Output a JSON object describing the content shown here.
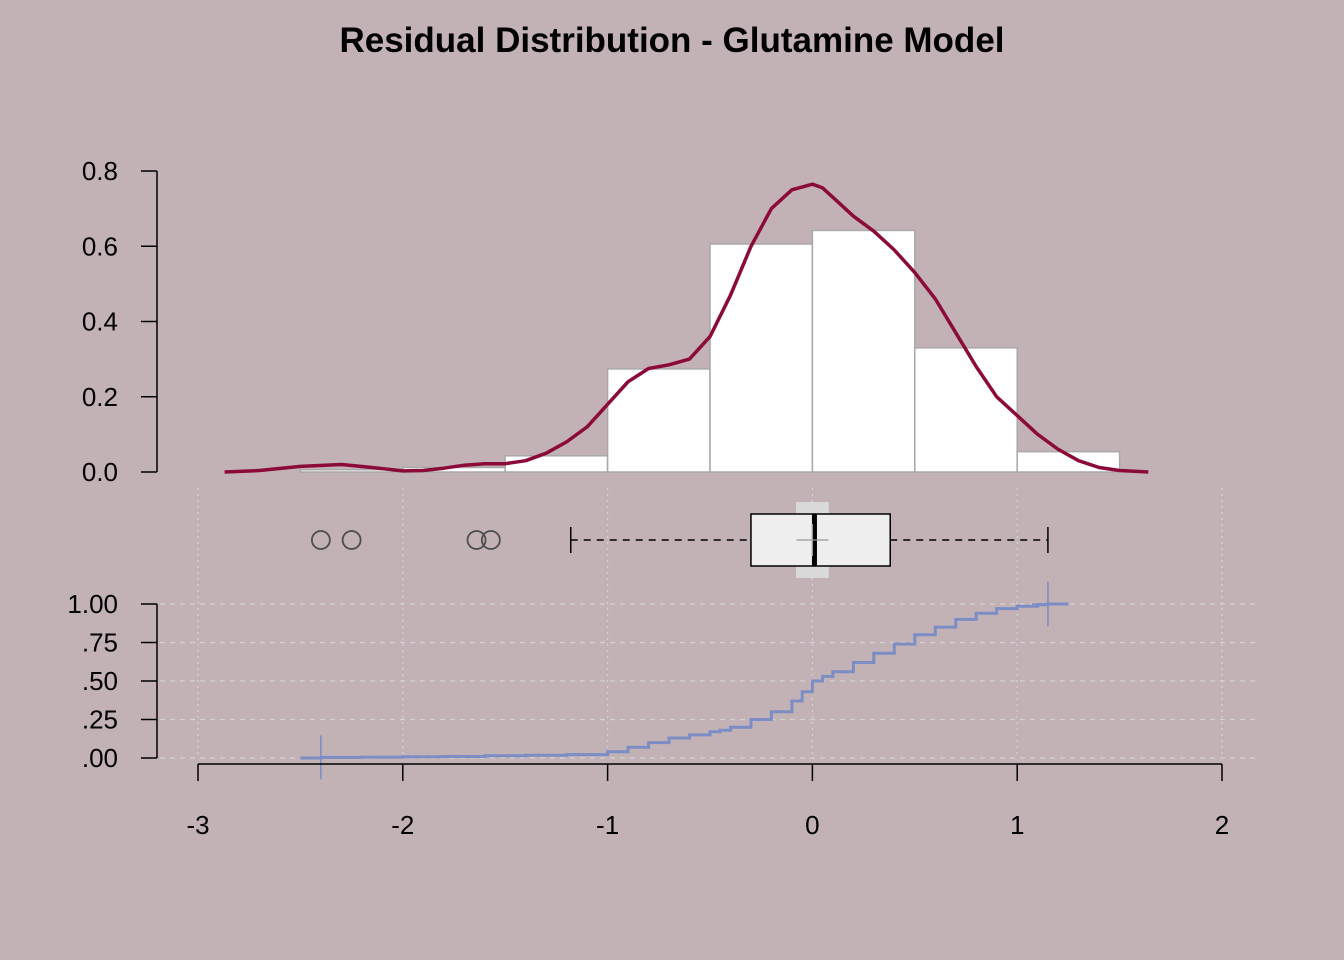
{
  "title": "Residual Distribution - Glutamine Model",
  "colors": {
    "background": "#C2B2B6",
    "hist_fill": "#FFFFFF",
    "hist_border": "#A8A8A8",
    "density": "#8B0A3A",
    "box_fill": "#EEEEEE",
    "mean_band": "#D9D9D9",
    "ecdf": "#7B8DC4",
    "outlier": "#4D4D4D",
    "grid": "#D3D3D3"
  },
  "chart_data": [
    {
      "type": "bar",
      "subtype": "histogram",
      "bins": [
        {
          "x0": -2.5,
          "x1": -2.0,
          "density": 0.006
        },
        {
          "x0": -2.0,
          "x1": -1.5,
          "density": 0.012
        },
        {
          "x0": -1.5,
          "x1": -1.0,
          "density": 0.043
        },
        {
          "x0": -1.0,
          "x1": -0.5,
          "density": 0.274
        },
        {
          "x0": -0.5,
          "x1": 0.0,
          "density": 0.606
        },
        {
          "x0": 0.0,
          "x1": 0.5,
          "density": 0.642
        },
        {
          "x0": 0.5,
          "x1": 1.0,
          "density": 0.33
        },
        {
          "x0": 1.0,
          "x1": 1.5,
          "density": 0.054
        }
      ],
      "density_curve": {
        "x": [
          -2.87,
          -2.7,
          -2.5,
          -2.3,
          -2.15,
          -2.0,
          -1.9,
          -1.8,
          -1.7,
          -1.6,
          -1.5,
          -1.4,
          -1.3,
          -1.2,
          -1.1,
          -1.0,
          -0.9,
          -0.8,
          -0.7,
          -0.6,
          -0.5,
          -0.4,
          -0.3,
          -0.2,
          -0.1,
          0.0,
          0.05,
          0.1,
          0.2,
          0.3,
          0.4,
          0.5,
          0.6,
          0.7,
          0.8,
          0.9,
          1.0,
          1.1,
          1.2,
          1.3,
          1.4,
          1.5,
          1.64
        ],
        "y": [
          0.0,
          0.004,
          0.015,
          0.02,
          0.012,
          0.003,
          0.004,
          0.01,
          0.018,
          0.022,
          0.022,
          0.03,
          0.05,
          0.08,
          0.12,
          0.18,
          0.24,
          0.275,
          0.285,
          0.3,
          0.36,
          0.47,
          0.6,
          0.7,
          0.75,
          0.765,
          0.755,
          0.73,
          0.68,
          0.64,
          0.59,
          0.53,
          0.46,
          0.37,
          0.28,
          0.2,
          0.15,
          0.1,
          0.06,
          0.03,
          0.012,
          0.004,
          0.0
        ]
      },
      "ylim": [
        0,
        0.8
      ],
      "yticks": [
        "0.0",
        "0.2",
        "0.4",
        "0.6",
        "0.8"
      ]
    },
    {
      "type": "boxplot",
      "whisker_low": -1.18,
      "q1": -0.3,
      "median": 0.01,
      "q3": 0.38,
      "whisker_high": 1.15,
      "mean": 0.0,
      "mean_ci": [
        -0.08,
        0.08
      ],
      "outliers": [
        -2.4,
        -2.25,
        -1.64,
        -1.57
      ]
    },
    {
      "type": "line",
      "subtype": "ecdf",
      "x": [
        -2.5,
        -2.4,
        -2.2,
        -2.0,
        -1.8,
        -1.6,
        -1.4,
        -1.2,
        -1.0,
        -0.9,
        -0.8,
        -0.7,
        -0.6,
        -0.5,
        -0.45,
        -0.4,
        -0.3,
        -0.2,
        -0.1,
        -0.05,
        0.0,
        0.05,
        0.1,
        0.2,
        0.3,
        0.4,
        0.5,
        0.6,
        0.7,
        0.8,
        0.9,
        1.0,
        1.1,
        1.15,
        1.25
      ],
      "y": [
        0.0,
        0.004,
        0.006,
        0.008,
        0.01,
        0.014,
        0.018,
        0.022,
        0.04,
        0.07,
        0.1,
        0.13,
        0.15,
        0.17,
        0.18,
        0.2,
        0.25,
        0.3,
        0.37,
        0.43,
        0.5,
        0.53,
        0.56,
        0.62,
        0.68,
        0.74,
        0.8,
        0.85,
        0.9,
        0.94,
        0.97,
        0.985,
        0.995,
        1.0,
        1.0
      ],
      "markers_x": [
        -2.4,
        1.15
      ],
      "ylim": [
        0,
        1
      ],
      "yticks": [
        ".00",
        ".25",
        ".50",
        ".75",
        "1.00"
      ],
      "yticks_top": "1.00"
    }
  ],
  "x_axis": {
    "range": [
      -3,
      2
    ],
    "ticks": [
      "-3",
      "-2",
      "-1",
      "0",
      "1",
      "2"
    ]
  }
}
